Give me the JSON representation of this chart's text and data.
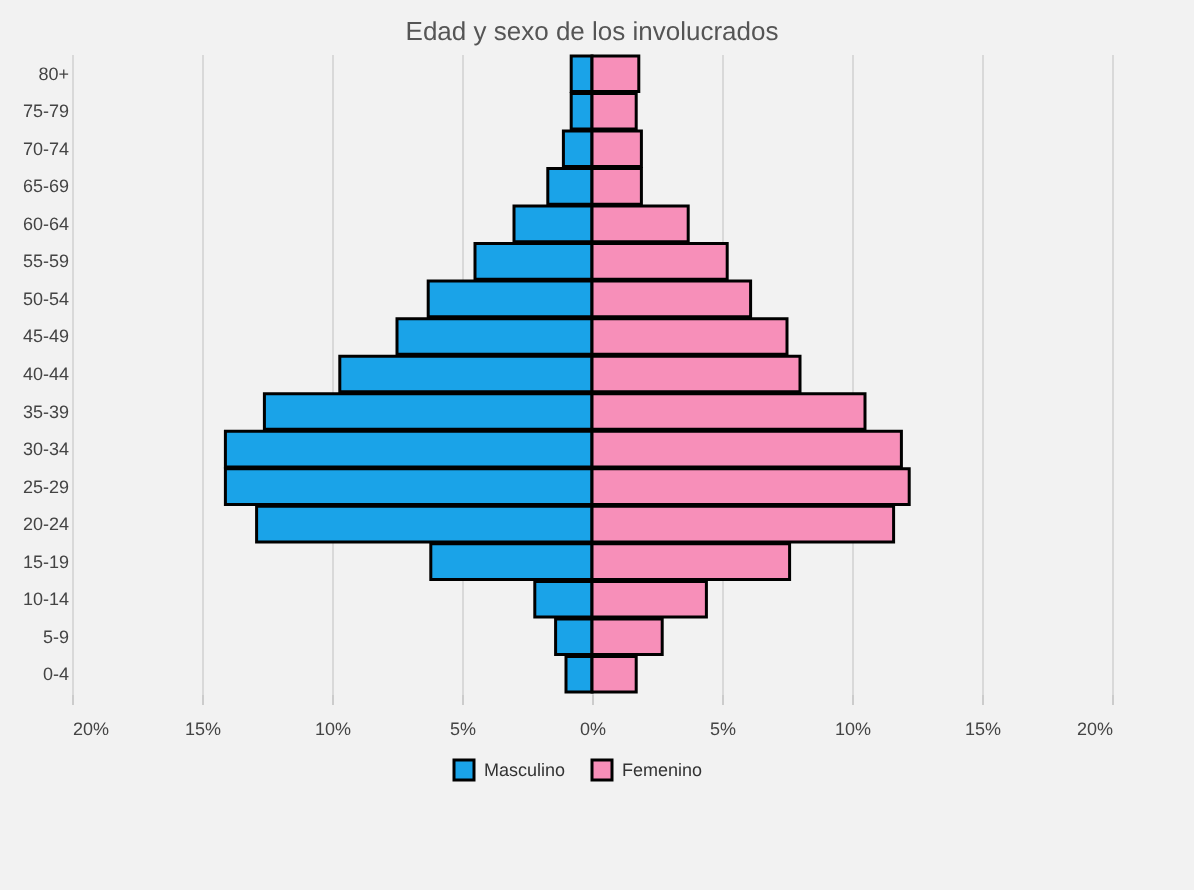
{
  "chart_data": {
    "type": "bar",
    "orientation": "horizontal",
    "title": "Edad y sexo de los involucrados",
    "categories": [
      "80+",
      "75-79",
      "70-74",
      "65-69",
      "60-64",
      "55-59",
      "50-54",
      "45-49",
      "40-44",
      "35-39",
      "30-34",
      "25-29",
      "20-24",
      "15-19",
      "10-14",
      "5-9",
      "0-4"
    ],
    "series": [
      {
        "name": "Masculino",
        "color": "#1aa3e8",
        "values": [
          -0.8,
          -0.8,
          -1.1,
          -1.7,
          -3.0,
          -4.5,
          -6.3,
          -7.5,
          -9.7,
          -12.6,
          -14.1,
          -14.1,
          -12.9,
          -6.2,
          -2.2,
          -1.4,
          -1.0
        ]
      },
      {
        "name": "Femenino",
        "color": "#f78fb9",
        "values": [
          1.8,
          1.7,
          1.9,
          1.9,
          3.7,
          5.2,
          6.1,
          7.5,
          8.0,
          10.5,
          11.9,
          12.2,
          11.6,
          7.6,
          4.4,
          2.7,
          1.7
        ]
      }
    ],
    "xlim": [
      -20,
      20
    ],
    "xticks": [
      {
        "value": -20,
        "label": "20%"
      },
      {
        "value": -15,
        "label": "15%"
      },
      {
        "value": -10,
        "label": "10%"
      },
      {
        "value": -5,
        "label": "5%"
      },
      {
        "value": 0,
        "label": "0%"
      },
      {
        "value": 5,
        "label": "5%"
      },
      {
        "value": 10,
        "label": "10%"
      },
      {
        "value": 15,
        "label": "15%"
      },
      {
        "value": 20,
        "label": "20%"
      }
    ],
    "stacked": true,
    "grid": "x",
    "legend": "bottom"
  }
}
